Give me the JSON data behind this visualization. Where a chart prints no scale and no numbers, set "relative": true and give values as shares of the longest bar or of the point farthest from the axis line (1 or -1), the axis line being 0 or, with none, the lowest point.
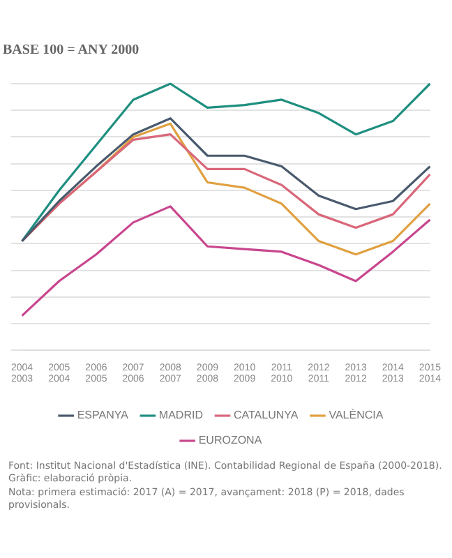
{
  "chart_data": {
    "type": "line",
    "title": "BASE 100 = ANY 2000",
    "relative": true,
    "grid": "y",
    "legend": "bottom",
    "marker": "none",
    "line_style": "solid",
    "categories": [
      "2004\n2003",
      "2005\n2004",
      "2006\n2005",
      "2007\n2006",
      "2008\n2007",
      "2009\n2008",
      "2010\n2009",
      "2011\n2010",
      "2012\n2011",
      "2013\n2012",
      "2014\n2013",
      "2015\n2014"
    ],
    "series": [
      {
        "name": "ESPANYA",
        "color": "#4a5a6e",
        "values": [
          0.41,
          0.56,
          0.69,
          0.81,
          0.87,
          0.73,
          0.73,
          0.69,
          0.58,
          0.53,
          0.56,
          0.69
        ]
      },
      {
        "name": "MADRID",
        "color": "#1f8f80",
        "values": [
          0.41,
          0.6,
          0.77,
          0.94,
          1,
          0.91,
          0.92,
          0.94,
          0.89,
          0.81,
          0.86,
          1
        ]
      },
      {
        "name": "CATALUNYA",
        "color": "#d9677a",
        "values": [
          0.41,
          0.55,
          0.67,
          0.79,
          0.81,
          0.68,
          0.68,
          0.62,
          0.51,
          0.46,
          0.51,
          0.66
        ]
      },
      {
        "name": "VALÈNCIA",
        "color": "#e0a040",
        "values": [
          0.41,
          0.55,
          0.67,
          0.8,
          0.85,
          0.63,
          0.61,
          0.55,
          0.41,
          0.36,
          0.41,
          0.55
        ]
      },
      {
        "name": "EUROZONA",
        "color": "#c8468e",
        "values": [
          0.13,
          0.26,
          0.36,
          0.48,
          0.54,
          0.39,
          0.38,
          0.37,
          0.32,
          0.26,
          0.37,
          0.49
        ]
      }
    ],
    "annotations": [
      "Font: Institut Nacional d'Estadística (INE). Contabilidad Regional de España (2000-2018). Gràfic: elaboració pròpia.",
      "Nota: primera estimació: 2017 (A) = 2017, avançament: 2018 (P) = 2018, dades provisionals."
    ]
  }
}
